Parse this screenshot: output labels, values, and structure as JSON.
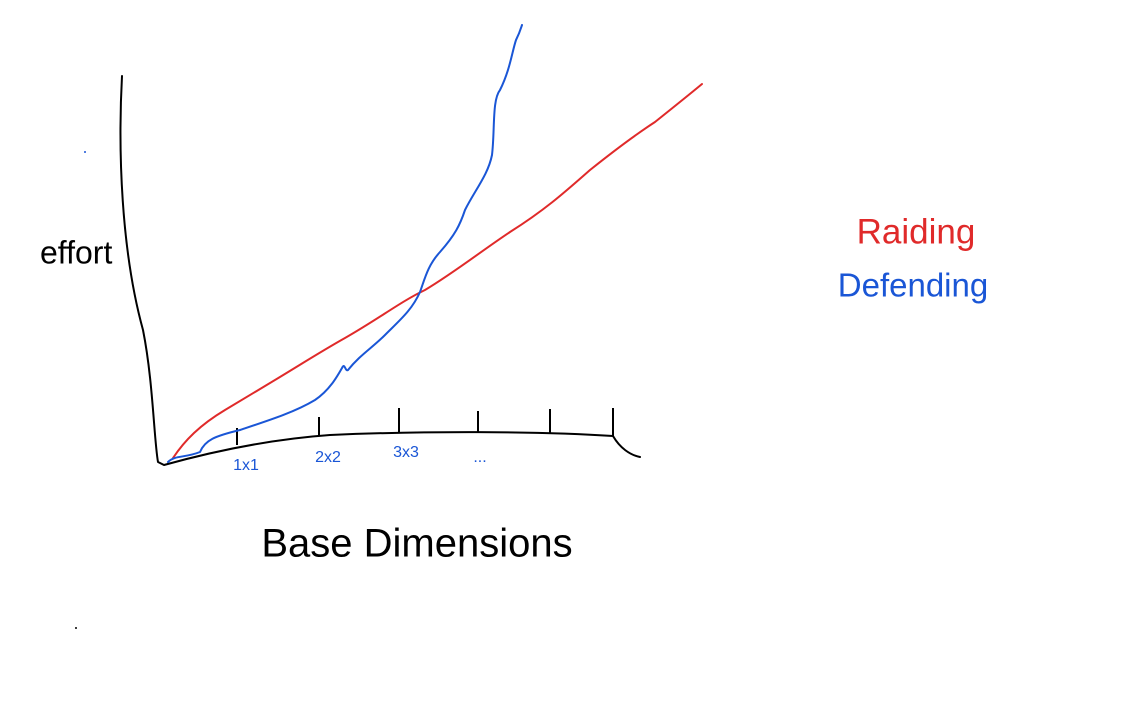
{
  "axes": {
    "y_label": "effort",
    "x_label": "Base Dimensions",
    "x_ticks": [
      "1x1",
      "2x2",
      "3x3",
      "..."
    ]
  },
  "legend": [
    "Raiding",
    "Defending"
  ]
}
